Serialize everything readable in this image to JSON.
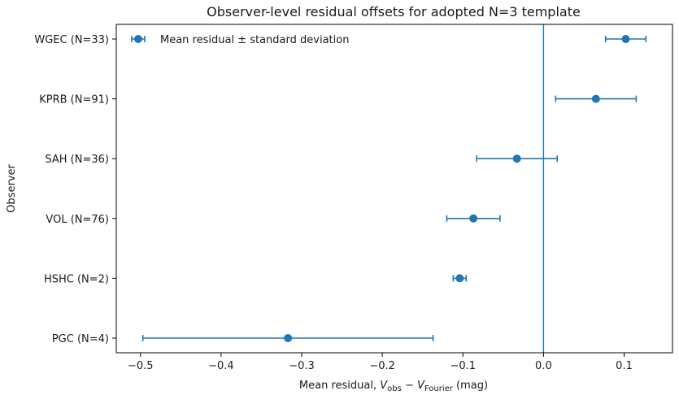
{
  "chart_data": {
    "type": "scatter",
    "title": "Observer-level residual offsets for adopted N=3 template",
    "xlabel_parts": {
      "prefix": "Mean residual, ",
      "v1": "V",
      "v1_sub": "obs",
      "minus": " − ",
      "v2": "V",
      "v2_sub": "Fourier",
      "suffix": " (mag)"
    },
    "ylabel": "Observer",
    "xlim": [
      -0.53,
      0.16
    ],
    "xticks": [
      -0.5,
      -0.4,
      -0.3,
      -0.2,
      -0.1,
      0.0,
      0.1
    ],
    "xtick_labels": [
      "−0.5",
      "−0.4",
      "−0.3",
      "−0.2",
      "−0.1",
      "0.0",
      "0.1"
    ],
    "reference_line_x": 0.0,
    "grid": false,
    "legend": {
      "placement": "upper-left",
      "entries": [
        {
          "label": "Mean residual ± standard deviation"
        }
      ]
    },
    "color": "#1f77b4",
    "series": [
      {
        "name": "Mean residual ± standard deviation",
        "points": [
          {
            "observer": "WGEC (N=33)",
            "mean": 0.102,
            "std": 0.025
          },
          {
            "observer": "KPRB (N=91)",
            "mean": 0.065,
            "std": 0.05
          },
          {
            "observer": "SAH (N=36)",
            "mean": -0.033,
            "std": 0.05
          },
          {
            "observer": "VOL (N=76)",
            "mean": -0.087,
            "std": 0.033
          },
          {
            "observer": "HSHC (N=2)",
            "mean": -0.104,
            "std": 0.008
          },
          {
            "observer": "PGC (N=4)",
            "mean": -0.317,
            "std": 0.18
          }
        ]
      }
    ]
  }
}
